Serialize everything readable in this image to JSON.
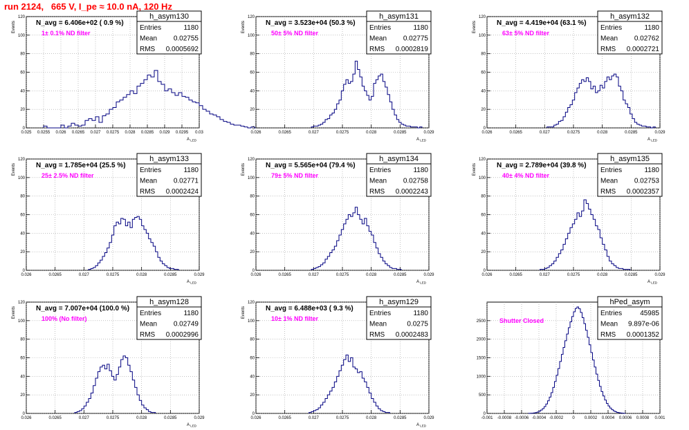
{
  "page": {
    "title": "run 2124,   665 V, I_pe ≈ 10.0 nA, 120 Hz"
  },
  "chart_data": [
    {
      "type": "bar",
      "name": "h_asym130",
      "title": "N_avg = 6.406e+02 ( 0.9 %)",
      "annotation": "1± 0.1% ND filter",
      "stats": {
        "entries": "1180",
        "mean": "0.02755",
        "rms": "0.0005692"
      },
      "ylabel": "Events",
      "xlabel": "A_LED",
      "xlim": [
        0.025,
        0.03
      ],
      "ylim": [
        0,
        120
      ],
      "bin_width": 0.0001,
      "xticks": [
        "0.025",
        "0.0255",
        "0.026",
        "0.0265",
        "0.027",
        "0.0275",
        "0.028",
        "0.0285",
        "0.029",
        "0.0295",
        "0.03"
      ],
      "yticks": [
        "0",
        "20",
        "40",
        "60",
        "80",
        "100",
        "120"
      ],
      "x_start": 0.0255,
      "values": [
        2,
        0,
        0,
        0,
        0,
        3,
        0,
        2,
        5,
        3,
        2,
        3,
        8,
        10,
        8,
        12,
        6,
        13,
        15,
        20,
        22,
        28,
        30,
        33,
        36,
        40,
        37,
        45,
        48,
        52,
        57,
        55,
        62,
        50,
        47,
        40,
        42,
        38,
        35,
        38,
        34,
        33,
        30,
        28,
        27,
        24,
        20,
        18,
        15,
        14,
        12,
        9,
        7,
        6,
        4,
        3,
        3,
        2,
        1,
        0,
        1,
        0,
        0,
        1
      ]
    },
    {
      "type": "bar",
      "name": "h_asym131",
      "title": "N_avg = 3.523e+04 (50.3 %)",
      "annotation": "50± 5% ND filter",
      "stats": {
        "entries": "1180",
        "mean": "0.02775",
        "rms": "0.0002819"
      },
      "ylabel": "Events",
      "xlabel": "A_LED",
      "xlim": [
        0.026,
        0.029
      ],
      "ylim": [
        0,
        120
      ],
      "bin_width": 4e-05,
      "xticks": [
        "0.026",
        "0.0265",
        "0.027",
        "0.0275",
        "0.028",
        "0.0285",
        "0.029"
      ],
      "yticks": [
        "0",
        "20",
        "40",
        "60",
        "80",
        "100",
        "120"
      ],
      "x_start": 0.02696,
      "values": [
        1,
        2,
        2,
        3,
        4,
        6,
        9,
        10,
        14,
        16,
        20,
        26,
        30,
        40,
        47,
        52,
        48,
        50,
        58,
        72,
        63,
        55,
        45,
        40,
        35,
        30,
        34,
        48,
        52,
        56,
        58,
        50,
        44,
        36,
        28,
        20,
        14,
        9,
        6,
        4,
        3,
        2,
        2,
        1,
        1,
        1,
        0,
        1
      ]
    },
    {
      "type": "bar",
      "name": "h_asym132",
      "title": "N_avg = 4.419e+04 (63.1 %)",
      "annotation": "63± 5% ND filter",
      "stats": {
        "entries": "1180",
        "mean": "0.02762",
        "rms": "0.0002721"
      },
      "ylabel": "Events",
      "xlabel": "A_LED",
      "xlim": [
        0.026,
        0.029
      ],
      "ylim": [
        0,
        120
      ],
      "bin_width": 4e-05,
      "xticks": [
        "0.026",
        "0.0265",
        "0.027",
        "0.0275",
        "0.028",
        "0.0285",
        "0.029"
      ],
      "yticks": [
        "0",
        "20",
        "40",
        "60",
        "80",
        "100",
        "120"
      ],
      "x_start": 0.02704,
      "values": [
        1,
        1,
        1,
        3,
        4,
        7,
        8,
        12,
        17,
        22,
        25,
        30,
        38,
        43,
        48,
        52,
        50,
        54,
        50,
        42,
        45,
        38,
        40,
        46,
        43,
        50,
        55,
        52,
        56,
        58,
        55,
        45,
        40,
        30,
        26,
        22,
        15,
        10,
        6,
        4,
        3,
        2,
        2,
        1,
        1,
        0,
        1
      ]
    },
    {
      "type": "bar",
      "name": "h_asym133",
      "title": "N_avg = 1.785e+04 (25.5 %)",
      "annotation": "25± 2.5% ND filter",
      "stats": {
        "entries": "1180",
        "mean": "0.02771",
        "rms": "0.0002424"
      },
      "ylabel": "Events",
      "xlabel": "A_LED",
      "xlim": [
        0.026,
        0.029
      ],
      "ylim": [
        0,
        120
      ],
      "bin_width": 4e-05,
      "xticks": [
        "0.026",
        "0.0265",
        "0.027",
        "0.0275",
        "0.028",
        "0.0285",
        "0.029"
      ],
      "yticks": [
        "0",
        "20",
        "40",
        "60",
        "80",
        "100",
        "120"
      ],
      "x_start": 0.02708,
      "values": [
        1,
        2,
        3,
        5,
        8,
        11,
        15,
        19,
        24,
        30,
        38,
        48,
        52,
        50,
        56,
        55,
        48,
        52,
        46,
        55,
        57,
        58,
        55,
        48,
        44,
        40,
        34,
        30,
        26,
        20,
        14,
        10,
        7,
        5,
        3,
        2,
        2,
        1,
        1
      ]
    },
    {
      "type": "bar",
      "name": "h_asym134",
      "title": "N_avg = 5.565e+04 (79.4 %)",
      "annotation": "79± 5% ND filter",
      "stats": {
        "entries": "1180",
        "mean": "0.02758",
        "rms": "0.0002243"
      },
      "ylabel": "Events",
      "xlabel": "A_LED",
      "xlim": [
        0.026,
        0.029
      ],
      "ylim": [
        0,
        120
      ],
      "bin_width": 4e-05,
      "xticks": [
        "0.026",
        "0.0265",
        "0.027",
        "0.0275",
        "0.028",
        "0.0285",
        "0.029"
      ],
      "yticks": [
        "0",
        "20",
        "40",
        "60",
        "80",
        "100",
        "120"
      ],
      "x_start": 0.02696,
      "values": [
        1,
        2,
        3,
        4,
        6,
        8,
        12,
        15,
        19,
        22,
        26,
        32,
        38,
        44,
        50,
        55,
        60,
        58,
        62,
        68,
        60,
        55,
        50,
        56,
        48,
        42,
        38,
        30,
        24,
        18,
        14,
        10,
        7,
        5,
        3,
        2,
        2,
        1,
        1
      ]
    },
    {
      "type": "bar",
      "name": "h_asym135",
      "title": "N_avg = 2.789e+04 (39.8 %)",
      "annotation": "40± 4% ND filter",
      "stats": {
        "entries": "1180",
        "mean": "0.02753",
        "rms": "0.0002357"
      },
      "ylabel": "Events",
      "xlabel": "A_LED",
      "xlim": [
        0.026,
        0.029
      ],
      "ylim": [
        0,
        120
      ],
      "bin_width": 4e-05,
      "xticks": [
        "0.026",
        "0.0265",
        "0.027",
        "0.0275",
        "0.028",
        "0.0285",
        "0.029"
      ],
      "yticks": [
        "0",
        "20",
        "40",
        "60",
        "80",
        "100",
        "120"
      ],
      "x_start": 0.02692,
      "values": [
        1,
        1,
        2,
        3,
        5,
        7,
        10,
        14,
        18,
        22,
        28,
        34,
        40,
        46,
        50,
        55,
        62,
        58,
        64,
        76,
        72,
        66,
        60,
        55,
        48,
        44,
        35,
        28,
        22,
        15,
        10,
        7,
        5,
        3,
        2,
        2,
        1,
        1,
        1
      ]
    },
    {
      "type": "bar",
      "name": "h_asym128",
      "title": "N_avg = 7.007e+04 (100.0 %)",
      "annotation": "100% (No filter)",
      "stats": {
        "entries": "1180",
        "mean": "0.02749",
        "rms": "0.0002996"
      },
      "ylabel": "Events",
      "xlabel": "A_LED",
      "xlim": [
        0.026,
        0.029
      ],
      "ylim": [
        0,
        120
      ],
      "bin_width": 4e-05,
      "xticks": [
        "0.026",
        "0.0265",
        "0.027",
        "0.0275",
        "0.028",
        "0.0285",
        "0.029"
      ],
      "yticks": [
        "0",
        "20",
        "40",
        "60",
        "80",
        "100",
        "120"
      ],
      "x_start": 0.02684,
      "values": [
        1,
        2,
        3,
        5,
        8,
        12,
        16,
        22,
        30,
        38,
        45,
        50,
        52,
        48,
        53,
        46,
        40,
        36,
        42,
        50,
        58,
        62,
        60,
        52,
        45,
        36,
        28,
        20,
        14,
        9,
        6,
        4,
        2,
        1,
        1
      ]
    },
    {
      "type": "bar",
      "name": "h_asym129",
      "title": "N_avg = 6.488e+03 ( 9.3 %)",
      "annotation": "10± 1% ND filter",
      "stats": {
        "entries": "1180",
        "mean": "0.0275",
        "rms": "0.0002483"
      },
      "ylabel": "Events",
      "xlabel": "A_LED",
      "xlim": [
        0.026,
        0.029
      ],
      "ylim": [
        0,
        120
      ],
      "bin_width": 4e-05,
      "xticks": [
        "0.026",
        "0.0265",
        "0.027",
        "0.0275",
        "0.028",
        "0.0285",
        "0.029"
      ],
      "yticks": [
        "0",
        "20",
        "40",
        "60",
        "80",
        "100",
        "120"
      ],
      "x_start": 0.02692,
      "values": [
        1,
        2,
        3,
        4,
        6,
        9,
        12,
        16,
        20,
        24,
        28,
        34,
        40,
        46,
        52,
        58,
        63,
        56,
        60,
        50,
        48,
        44,
        45,
        38,
        34,
        28,
        22,
        16,
        12,
        8,
        5,
        3,
        2,
        1,
        1
      ]
    },
    {
      "type": "bar",
      "name": "hPed_asym",
      "title": "",
      "annotation": "Shutter Closed",
      "stats": {
        "entries": "45985",
        "mean": "9.897e-06",
        "rms": "0.0001352"
      },
      "ylabel": "",
      "xlabel": "",
      "xlim": [
        -0.001,
        0.001
      ],
      "ylim": [
        0,
        3000
      ],
      "bin_width": 2e-05,
      "xticks": [
        "-0.001",
        "-0.0008",
        "-0.0006",
        "-0.0004",
        "-0.0002",
        "0",
        "0.0002",
        "0.0004",
        "0.0006",
        "0.0008",
        "0.001"
      ],
      "yticks": [
        "0",
        "500",
        "1000",
        "1500",
        "2000",
        "2500"
      ],
      "x_start": -0.00052,
      "values": [
        2,
        4,
        8,
        14,
        24,
        38,
        60,
        90,
        130,
        185,
        255,
        340,
        440,
        560,
        700,
        860,
        1030,
        1210,
        1400,
        1590,
        1780,
        1960,
        2140,
        2310,
        2470,
        2610,
        2740,
        2830,
        2870,
        2820,
        2720,
        2580,
        2420,
        2240,
        2050,
        1850,
        1640,
        1440,
        1250,
        1060,
        890,
        730,
        590,
        470,
        360,
        270,
        200,
        145,
        100,
        68,
        45,
        29,
        18,
        11,
        6,
        3
      ]
    }
  ]
}
